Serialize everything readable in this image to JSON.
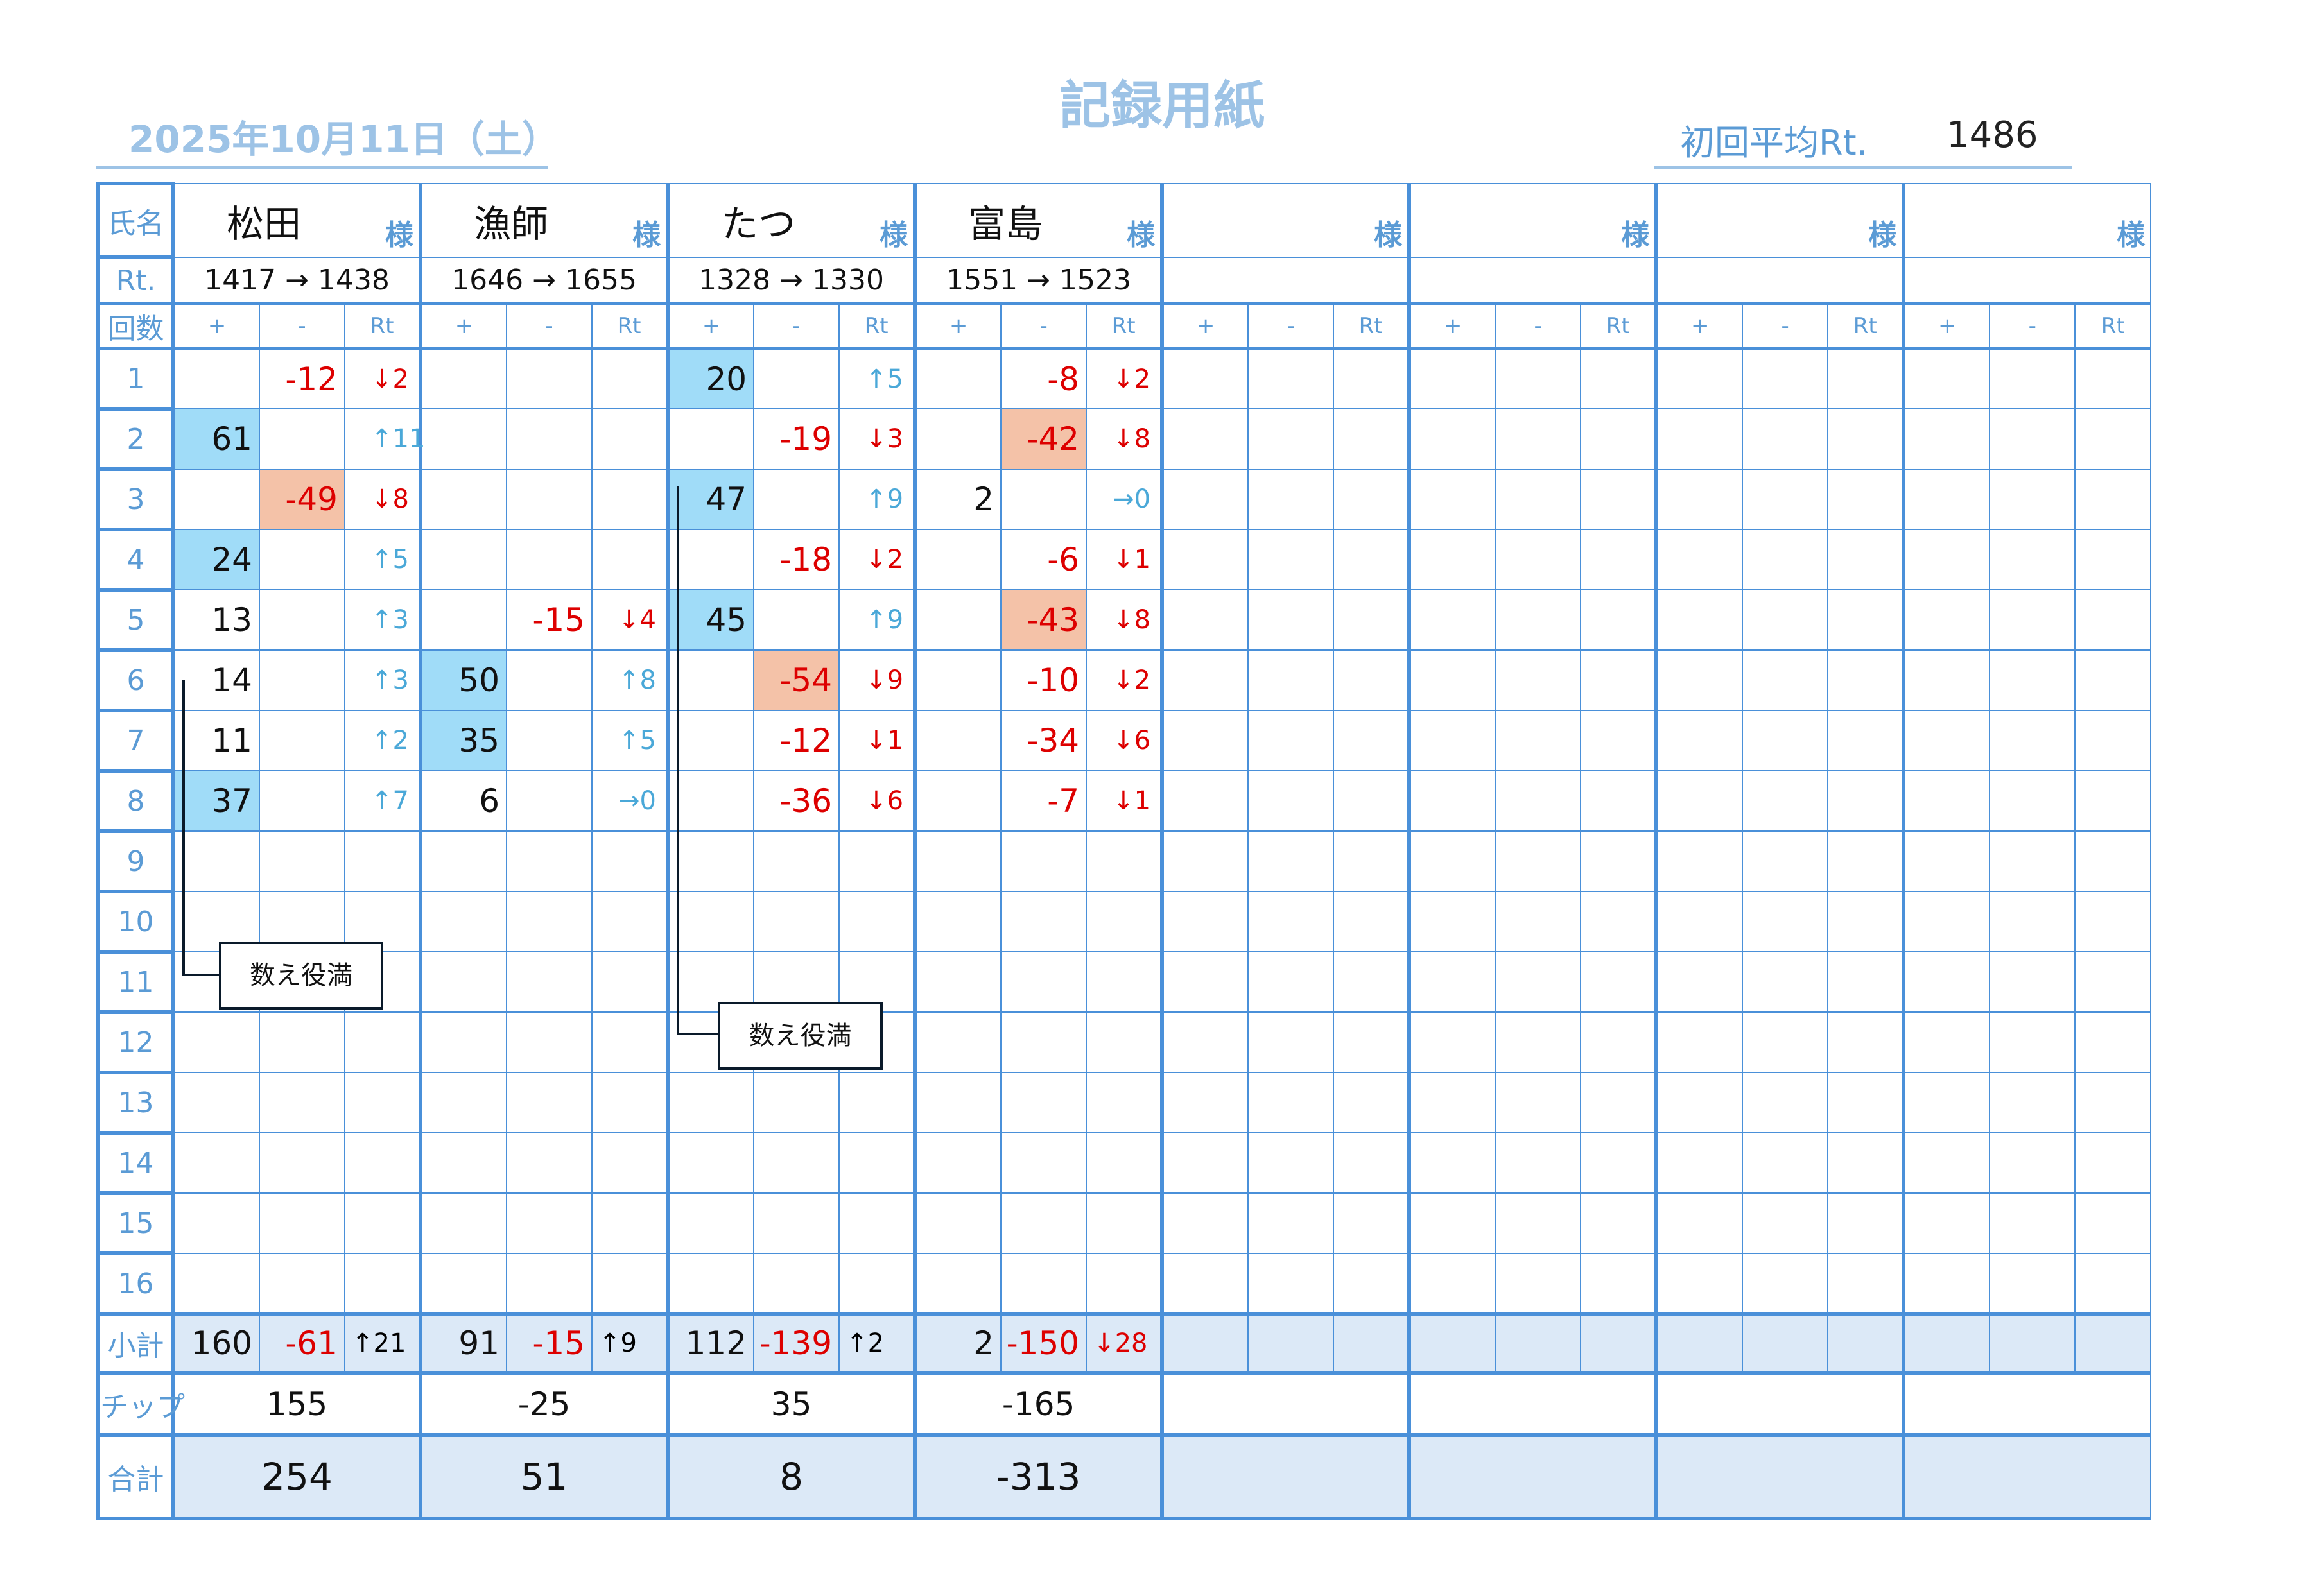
{
  "title": "記録用紙",
  "date": "2025年10月11日（土）",
  "initial_avg_label": "初回平均Rt.",
  "initial_avg_value": "1486",
  "labels": {
    "name": "氏名",
    "rt": "Rt.",
    "rounds": "回数",
    "subtotal": "小計",
    "chip": "チップ",
    "total": "合計",
    "sama": "様",
    "plus": "+",
    "minus": "-",
    "rtcol": "Rt"
  },
  "round_numbers": [
    "1",
    "2",
    "3",
    "4",
    "5",
    "6",
    "7",
    "8",
    "9",
    "10",
    "11",
    "12",
    "13",
    "14",
    "15",
    "16"
  ],
  "colors": {
    "border": "#4a90d9",
    "label": "#5b9bd5",
    "plus_highlight": "#a0dcf8",
    "minus_highlight": "#f4c2a8",
    "summary_fill": "#dce9f7",
    "negative": "#dd0000",
    "rt_up": "#4aa8d8"
  },
  "players": [
    {
      "name": "松田",
      "rt": "1417 → 1438",
      "rounds": [
        {
          "plus": "",
          "minus": "-12",
          "rt": "↓2"
        },
        {
          "plus": "61",
          "minus": "",
          "rt": "↑11",
          "hl": "plus"
        },
        {
          "plus": "",
          "minus": "-49",
          "rt": "↓8",
          "hl": "minus"
        },
        {
          "plus": "24",
          "minus": "",
          "rt": "↑5",
          "hl": "plus"
        },
        {
          "plus": "13",
          "minus": "",
          "rt": "↑3"
        },
        {
          "plus": "14",
          "minus": "",
          "rt": "↑3"
        },
        {
          "plus": "11",
          "minus": "",
          "rt": "↑2"
        },
        {
          "plus": "37",
          "minus": "",
          "rt": "↑7",
          "hl": "plus"
        }
      ],
      "subtotal": {
        "plus": "160",
        "minus": "-61",
        "rt": "↑21"
      },
      "chip": "155",
      "total": "254"
    },
    {
      "name": "漁師",
      "rt": "1646 → 1655",
      "rounds": [
        {},
        {},
        {},
        {},
        {
          "plus": "",
          "minus": "-15",
          "rt": "↓4"
        },
        {
          "plus": "50",
          "minus": "",
          "rt": "↑8",
          "hl": "plus"
        },
        {
          "plus": "35",
          "minus": "",
          "rt": "↑5",
          "hl": "plus"
        },
        {
          "plus": "6",
          "minus": "",
          "rt": "→0"
        }
      ],
      "subtotal": {
        "plus": "91",
        "minus": "-15",
        "rt": "↑9"
      },
      "chip": "-25",
      "total": "51"
    },
    {
      "name": "たつ",
      "rt": "1328 → 1330",
      "rounds": [
        {
          "plus": "20",
          "minus": "",
          "rt": "↑5",
          "hl": "plus"
        },
        {
          "plus": "",
          "minus": "-19",
          "rt": "↓3"
        },
        {
          "plus": "47",
          "minus": "",
          "rt": "↑9",
          "hl": "plus"
        },
        {
          "plus": "",
          "minus": "-18",
          "rt": "↓2"
        },
        {
          "plus": "45",
          "minus": "",
          "rt": "↑9",
          "hl": "plus"
        },
        {
          "plus": "",
          "minus": "-54",
          "rt": "↓9",
          "hl": "minus"
        },
        {
          "plus": "",
          "minus": "-12",
          "rt": "↓1"
        },
        {
          "plus": "",
          "minus": "-36",
          "rt": "↓6"
        }
      ],
      "subtotal": {
        "plus": "112",
        "minus": "-139",
        "rt": "↑2"
      },
      "chip": "35",
      "total": "8"
    },
    {
      "name": "富島",
      "rt": "1551 → 1523",
      "rounds": [
        {
          "plus": "",
          "minus": "-8",
          "rt": "↓2"
        },
        {
          "plus": "",
          "minus": "-42",
          "rt": "↓8",
          "hl": "minus"
        },
        {
          "plus": "2",
          "minus": "",
          "rt": "→0"
        },
        {
          "plus": "",
          "minus": "-6",
          "rt": "↓1"
        },
        {
          "plus": "",
          "minus": "-43",
          "rt": "↓8",
          "hl": "minus"
        },
        {
          "plus": "",
          "minus": "-10",
          "rt": "↓2"
        },
        {
          "plus": "",
          "minus": "-34",
          "rt": "↓6"
        },
        {
          "plus": "",
          "minus": "-7",
          "rt": "↓1"
        }
      ],
      "subtotal": {
        "plus": "2",
        "minus": "-150",
        "rt": "↓28"
      },
      "chip": "-165",
      "total": "-313"
    },
    {
      "name": "",
      "rt": "",
      "rounds": [],
      "subtotal": {},
      "chip": "",
      "total": ""
    },
    {
      "name": "",
      "rt": "",
      "rounds": [],
      "subtotal": {},
      "chip": "",
      "total": ""
    },
    {
      "name": "",
      "rt": "",
      "rounds": [],
      "subtotal": {},
      "chip": "",
      "total": ""
    },
    {
      "name": "",
      "rt": "",
      "rounds": [],
      "subtotal": {},
      "chip": "",
      "total": ""
    }
  ],
  "annotations": [
    {
      "text": "数え役満"
    },
    {
      "text": "数え役満"
    }
  ]
}
